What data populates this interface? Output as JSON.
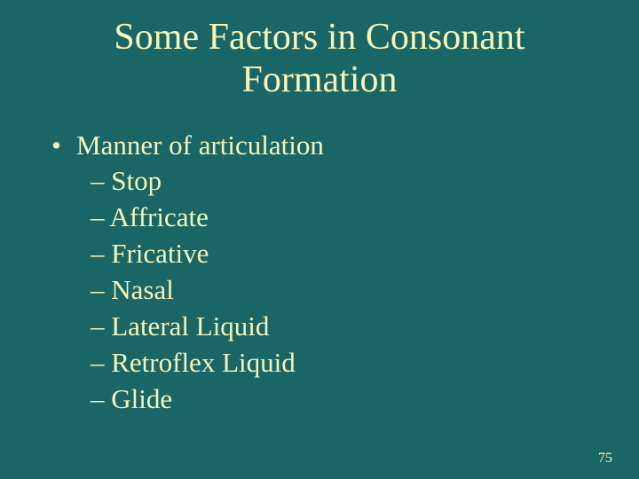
{
  "slide": {
    "background_color": "#1a6666",
    "text_color": "#f5f5b8",
    "title_fontsize": 42,
    "body_fontsize": 31,
    "page_number_fontsize": 16,
    "font_family": "Times New Roman",
    "title": "Some Factors in Consonant Formation",
    "bullet": {
      "label": "Manner of articulation",
      "sub_items": [
        "– Stop",
        "– Affricate",
        "– Fricative",
        "– Nasal",
        "– Lateral Liquid",
        "– Retroflex Liquid",
        "– Glide"
      ]
    },
    "page_number": "75"
  }
}
